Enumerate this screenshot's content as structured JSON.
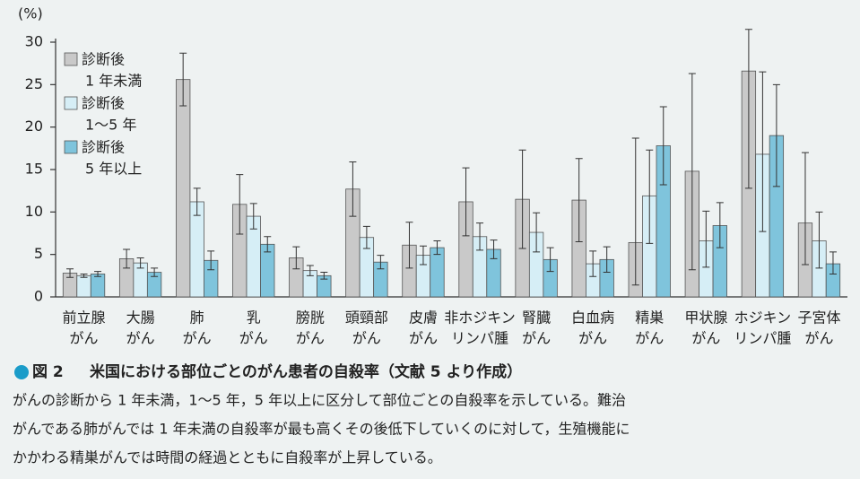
{
  "chart_data": {
    "type": "bar",
    "figure_label": "図 2",
    "title": "米国における部位ごとのがん患者の自殺率（文献 5 より作成）",
    "description": [
      "がんの診断から 1 年未満，1～5 年，5 年以上に区分して部位ごとの自殺率を示している。難治",
      "がんである肺がんでは 1 年未満の自殺率が最も高くその後低下していくのに対して，生殖機能に",
      "かかわる精巣がんでは時間の経過とともに自殺率が上昇している。"
    ],
    "ylabel": "(%)",
    "categories": [
      [
        "前立腺",
        "がん"
      ],
      [
        "大腸",
        "がん"
      ],
      [
        "肺",
        "がん"
      ],
      [
        "乳",
        "がん"
      ],
      [
        "膀胱",
        "がん"
      ],
      [
        "頭頸部",
        "がん"
      ],
      [
        "皮膚",
        "がん"
      ],
      [
        "非ホジキン",
        "リンパ腫"
      ],
      [
        "腎臓",
        "がん"
      ],
      [
        "白血病",
        "がん"
      ],
      [
        "精巣",
        "がん"
      ],
      [
        "甲状腺",
        "がん"
      ],
      [
        "ホジキン",
        "リンパ腫"
      ],
      [
        "子宮体",
        "がん"
      ]
    ],
    "series": [
      {
        "name": [
          "診断後",
          "1 年未満"
        ],
        "color": "#c9c9c9",
        "values": [
          2.8,
          4.5,
          25.6,
          10.9,
          4.6,
          12.7,
          6.1,
          11.2,
          11.5,
          11.4,
          6.4,
          14.8,
          26.6,
          8.7
        ],
        "errors": [
          [
            0.5,
            0.5
          ],
          [
            1.1,
            1.1
          ],
          [
            3.1,
            3.1
          ],
          [
            3.5,
            3.5
          ],
          [
            1.3,
            1.3
          ],
          [
            3.2,
            3.2
          ],
          [
            2.7,
            2.7
          ],
          [
            4.0,
            4.0
          ],
          [
            5.8,
            5.8
          ],
          [
            4.9,
            4.9
          ],
          [
            5.0,
            12.3
          ],
          [
            11.6,
            11.5
          ],
          [
            13.8,
            4.9
          ],
          [
            4.9,
            8.3
          ]
        ]
      },
      {
        "name": [
          "診断後",
          "1～5 年"
        ],
        "color": "#d6eef6",
        "values": [
          2.5,
          4.0,
          11.2,
          9.5,
          3.1,
          7.0,
          4.9,
          7.1,
          7.6,
          3.9,
          11.9,
          6.6,
          16.8,
          6.6
        ],
        "errors": [
          [
            0.2,
            0.2
          ],
          [
            0.6,
            0.6
          ],
          [
            1.6,
            1.6
          ],
          [
            1.5,
            1.5
          ],
          [
            0.6,
            0.6
          ],
          [
            1.3,
            1.3
          ],
          [
            1.1,
            1.1
          ],
          [
            1.6,
            1.6
          ],
          [
            2.3,
            2.3
          ],
          [
            1.5,
            1.5
          ],
          [
            5.6,
            5.4
          ],
          [
            3.1,
            3.5
          ],
          [
            9.1,
            9.7
          ],
          [
            3.2,
            3.4
          ]
        ]
      },
      {
        "name": [
          "診断後",
          "5 年以上"
        ],
        "color": "#7fc4dc",
        "values": [
          2.7,
          2.9,
          4.3,
          6.2,
          2.5,
          4.1,
          5.8,
          5.6,
          4.4,
          4.4,
          17.8,
          8.4,
          19.0,
          3.9
        ],
        "errors": [
          [
            0.3,
            0.3
          ],
          [
            0.5,
            0.5
          ],
          [
            1.1,
            1.1
          ],
          [
            0.9,
            0.9
          ],
          [
            0.4,
            0.4
          ],
          [
            0.8,
            0.8
          ],
          [
            0.8,
            0.8
          ],
          [
            1.1,
            1.1
          ],
          [
            1.4,
            1.4
          ],
          [
            1.5,
            1.5
          ],
          [
            4.6,
            4.6
          ],
          [
            2.6,
            2.7
          ],
          [
            6.0,
            6.0
          ],
          [
            1.2,
            1.4
          ]
        ]
      }
    ],
    "ylim": [
      0,
      30
    ],
    "yticks": [
      0,
      5,
      10,
      15,
      20,
      25,
      30
    ]
  }
}
